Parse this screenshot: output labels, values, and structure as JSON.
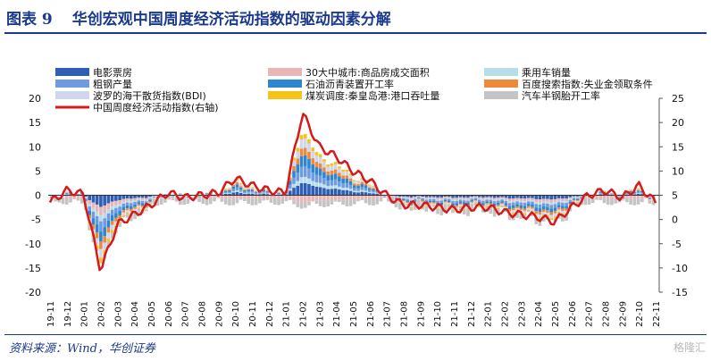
{
  "header": {
    "figure_no": "图表 9",
    "title": "华创宏观中国周度经济活动指数的驱动因素分解"
  },
  "footer": {
    "source": "资料来源：Wind，华创证券",
    "watermark": "格隆汇"
  },
  "colors": {
    "title": "#1b3a8c",
    "index_line": "#d7191c"
  },
  "chart_data": {
    "type": "bar",
    "stacked": true,
    "legend_position": "top",
    "left_axis": {
      "ylim": [
        -20,
        20
      ],
      "ticks": [
        -20,
        -15,
        -10,
        -5,
        0,
        5,
        10,
        15,
        20
      ]
    },
    "right_axis": {
      "ylim": [
        -15,
        25
      ],
      "ticks": [
        -15,
        -10,
        -5,
        0,
        5,
        10,
        15,
        20,
        25
      ]
    },
    "x_tick_labels": [
      "19-11",
      "19-12",
      "20-01",
      "20-02",
      "20-03",
      "20-04",
      "20-05",
      "20-06",
      "20-07",
      "20-08",
      "20-09",
      "20-10",
      "20-11",
      "20-12",
      "21-01",
      "21-02",
      "21-03",
      "21-04",
      "21-05",
      "21-06",
      "21-07",
      "21-08",
      "21-09",
      "21-10",
      "21-11",
      "21-12",
      "22-01",
      "22-02",
      "22-03",
      "22-04",
      "22-05",
      "22-06",
      "22-07",
      "22-08",
      "22-09",
      "22-10",
      "22-11"
    ],
    "series_names": [
      "电影票房",
      "30大中城市:商品房成交面积",
      "乘用车销量",
      "粗钢产量",
      "石油沥青装置开工率",
      "百度搜索指数:失业金领取条件",
      "波罗的海干散货指数(BDI)",
      "煤炭调度:秦皇岛港:港口吞吐量",
      "汽车半钢胎开工率",
      "中国周度经济活动指数(右轴)"
    ],
    "series_colors": [
      "#2e5fb7",
      "#e8b6b6",
      "#b7dde8",
      "#6f9be0",
      "#2d86cf",
      "#ef8a3c",
      "#cfd6ee",
      "#f4c41a",
      "#c4c4c4",
      "#d7191c"
    ],
    "index_right_axis_monthly": [
      3.5,
      6.0,
      5.2,
      -10.5,
      -1.0,
      1.0,
      3.0,
      5.5,
      4.5,
      5.0,
      5.5,
      8.5,
      7.0,
      6.0,
      5.5,
      22.0,
      15.0,
      13.0,
      10.0,
      8.0,
      5.0,
      3.0,
      3.0,
      2.5,
      2.0,
      2.5,
      2.5,
      1.5,
      1.0,
      0.5,
      -0.5,
      2.5,
      5.0,
      6.0,
      4.5,
      7.0,
      3.5
    ]
  }
}
